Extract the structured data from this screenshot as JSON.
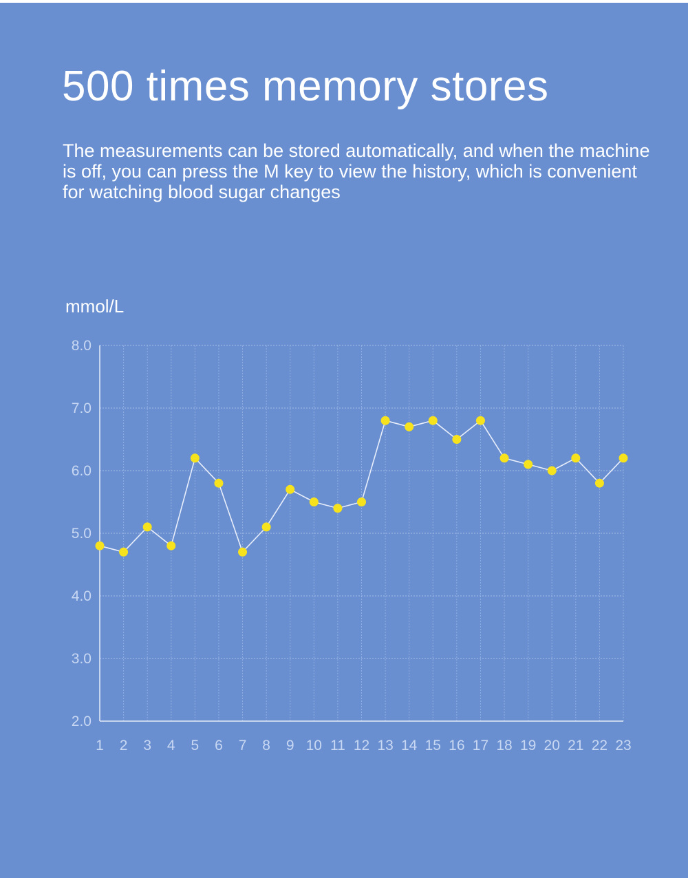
{
  "page": {
    "headline": "500 times memory stores",
    "description": "The measurements can be stored automatically, and when the machine is off, you can press the M key to view the history, which is convenient for watching blood sugar changes"
  },
  "colors": {
    "background": "#698fd1",
    "text": "#ffffff",
    "series_line": "#e8eefa",
    "point": "#f7e31d",
    "grid": "#a9c1ec",
    "axis": "#e6ecf8"
  },
  "chart_data": {
    "type": "line",
    "title": "",
    "xlabel": "",
    "ylabel": "mmol/L",
    "categories": [
      "1",
      "2",
      "3",
      "4",
      "5",
      "6",
      "7",
      "8",
      "9",
      "10",
      "11",
      "12",
      "13",
      "14",
      "15",
      "16",
      "17",
      "18",
      "19",
      "20",
      "21",
      "22",
      "23"
    ],
    "values": [
      4.8,
      4.7,
      5.1,
      4.8,
      6.2,
      5.8,
      4.7,
      5.1,
      5.7,
      5.5,
      5.4,
      5.5,
      6.8,
      6.7,
      6.8,
      6.5,
      6.8,
      6.2,
      6.1,
      6.0,
      6.2,
      5.8,
      6.2
    ],
    "ylim": [
      2.0,
      8.0
    ],
    "yticks": [
      "2.0",
      "3.0",
      "4.0",
      "5.0",
      "6.0",
      "7.0",
      "8.0"
    ],
    "grid": true,
    "legend": "none"
  }
}
